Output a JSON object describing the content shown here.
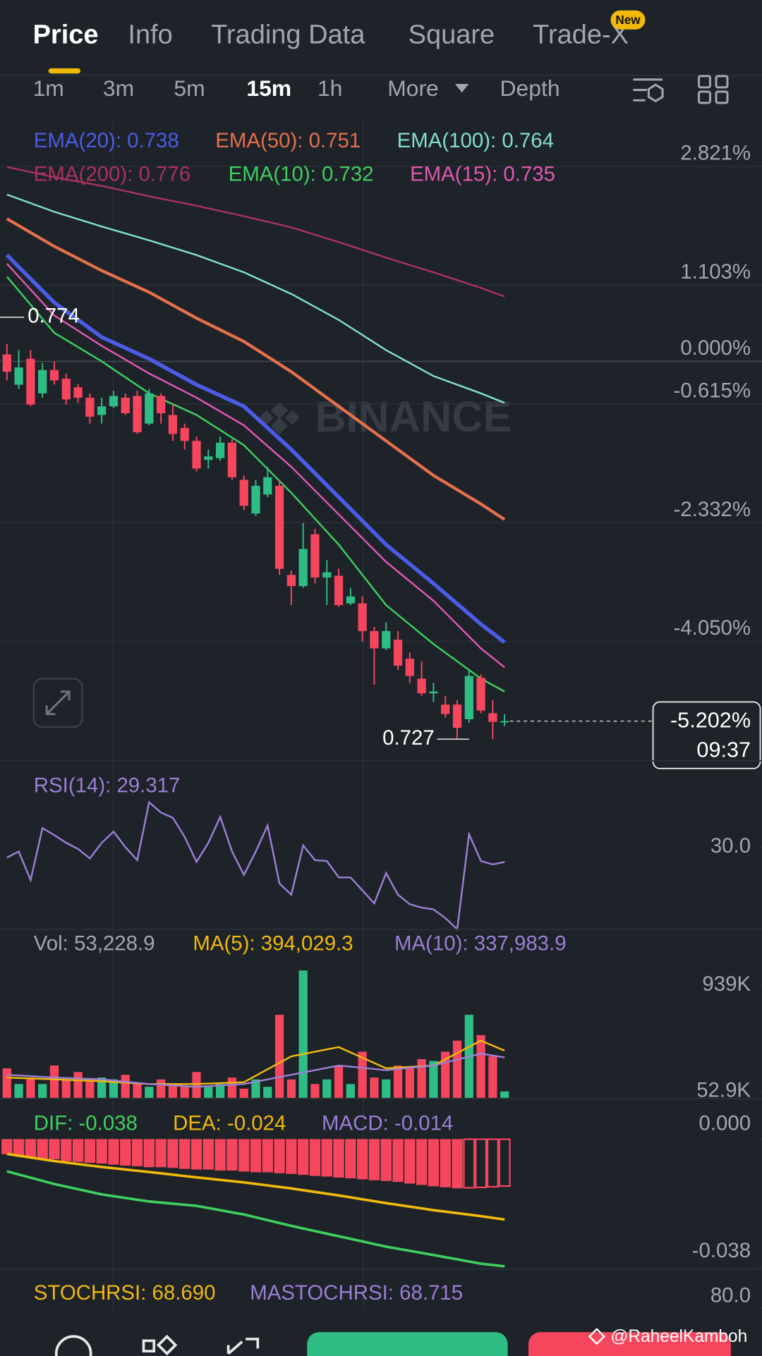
{
  "tabs": [
    "Price",
    "Info",
    "Trading Data",
    "Square",
    "Trade-X"
  ],
  "badge": "New",
  "timeframes": [
    "1m",
    "3m",
    "5m",
    "15m",
    "1h",
    "More",
    "Depth"
  ],
  "watermark": "BINANCE",
  "credit": "@RaheelKamboh",
  "chart_data": [
    {
      "type": "candlestick",
      "up_color": "#2ebd85",
      "down_color": "#f6465d",
      "grid": true,
      "ylim": [
        -5.775,
        3.475
      ],
      "yticks": [
        {
          "value": 2.821,
          "label": "2.821%"
        },
        {
          "value": 1.103,
          "label": "1.103%"
        },
        {
          "value": 0,
          "label": "0.000%"
        },
        {
          "value": -0.615,
          "label": "-0.615%"
        },
        {
          "value": -2.332,
          "label": "-2.332%"
        },
        {
          "value": -4.05,
          "label": "-4.050%"
        }
      ],
      "ohlc": [
        [
          0.1,
          0.25,
          -0.275,
          -0.15
        ],
        [
          -0.338,
          0.163,
          -0.4,
          -0.088
        ],
        [
          0.038,
          0.163,
          -0.65,
          -0.625
        ],
        [
          -0.463,
          -0.025,
          -0.525,
          -0.125
        ],
        [
          -0.125,
          0,
          -0.338,
          -0.275
        ],
        [
          -0.25,
          -0.175,
          -0.625,
          -0.55
        ],
        [
          -0.375,
          -0.325,
          -0.6,
          -0.525
        ],
        [
          -0.525,
          -0.463,
          -0.9,
          -0.8
        ],
        [
          -0.775,
          -0.525,
          -0.9,
          -0.65
        ],
        [
          -0.65,
          -0.425,
          -0.675,
          -0.5
        ],
        [
          -0.525,
          -0.463,
          -0.775,
          -0.75
        ],
        [
          -0.5,
          -0.425,
          -1.05,
          -1.025
        ],
        [
          -0.9,
          -0.4,
          -0.925,
          -0.463
        ],
        [
          -0.5,
          -0.463,
          -0.9,
          -0.75
        ],
        [
          -0.775,
          -0.625,
          -1.15,
          -1.05
        ],
        [
          -0.963,
          -0.9,
          -1.275,
          -1.15
        ],
        [
          -1.15,
          -1.088,
          -1.588,
          -1.55
        ],
        [
          -1.425,
          -1.275,
          -1.55,
          -1.375
        ],
        [
          -1.4,
          -1.088,
          -1.438,
          -1.175
        ],
        [
          -1.175,
          -1.125,
          -1.713,
          -1.675
        ],
        [
          -1.713,
          -1.65,
          -2.15,
          -2.088
        ],
        [
          -2.2,
          -1.713,
          -2.238,
          -1.8
        ],
        [
          -1.925,
          -1.525,
          -1.963,
          -1.675
        ],
        [
          -1.8,
          -1.713,
          -3.088,
          -3
        ],
        [
          -3.088,
          -3.025,
          -3.525,
          -3.25
        ],
        [
          -3.25,
          -2.338,
          -3.275,
          -2.713
        ],
        [
          -2.5,
          -2.425,
          -3.213,
          -3.125
        ],
        [
          -3.125,
          -2.875,
          -3.525,
          -3.05
        ],
        [
          -3.1,
          -3,
          -3.55,
          -3.525
        ],
        [
          -3.5,
          -3.275,
          -3.525,
          -3.4
        ],
        [
          -3.5,
          -3.4,
          -4.05,
          -3.9
        ],
        [
          -3.9,
          -3.838,
          -4.675,
          -4.15
        ],
        [
          -4.15,
          -3.775,
          -4.175,
          -3.9
        ],
        [
          -4.025,
          -3.9,
          -4.463,
          -4.4
        ],
        [
          -4.3,
          -4.213,
          -4.65,
          -4.55
        ],
        [
          -4.588,
          -4.338,
          -4.838,
          -4.8
        ],
        [
          -4.8,
          -4.65,
          -4.925,
          -4.775
        ],
        [
          -4.963,
          -4.838,
          -5.15,
          -5.1
        ],
        [
          -4.963,
          -4.9,
          -5.463,
          -5.3
        ],
        [
          -5.175,
          -4.463,
          -5.225,
          -4.55
        ],
        [
          -4.575,
          -4.525,
          -5.088,
          -5.05
        ],
        [
          -5.088,
          -4.9,
          -5.463,
          -5.213
        ],
        [
          -5.213,
          -5.1,
          -5.275,
          -5.202
        ]
      ],
      "line_x": [
        0,
        4,
        8,
        12,
        16,
        20,
        24,
        28,
        32,
        36,
        40,
        42
      ],
      "series": [
        {
          "label": "EMA(20): 0.738",
          "color": "#4a5ce6",
          "values": [
            1.538,
            0.85,
            0.35,
            0.037,
            -0.338,
            -0.65,
            -1.275,
            -1.963,
            -2.65,
            -3.213,
            -3.8,
            -4.063
          ]
        },
        {
          "label": "EMA(50): 0.751",
          "color": "#e5704b",
          "values": [
            2.063,
            1.663,
            1.313,
            1.0,
            0.625,
            0.288,
            -0.15,
            -0.65,
            -1.15,
            -1.65,
            -2.063,
            -2.288
          ]
        },
        {
          "label": "EMA(100): 0.764",
          "color": "#7fe0c9",
          "values": [
            2.413,
            2.163,
            1.95,
            1.75,
            1.538,
            1.288,
            0.975,
            0.6,
            0.162,
            -0.213,
            -0.463,
            -0.6
          ]
        },
        {
          "label": "EMA(200): 0.776",
          "color": "#a8325f",
          "values": [
            2.813,
            2.663,
            2.538,
            2.388,
            2.25,
            2.1,
            1.938,
            1.725,
            1.5,
            1.288,
            1.063,
            0.938
          ]
        },
        {
          "label": "EMA(10): 0.732",
          "color": "#3ecf5e",
          "values": [
            1.225,
            0.413,
            0.0,
            -0.463,
            -0.775,
            -1.213,
            -1.9,
            -2.65,
            -3.525,
            -4.088,
            -4.588,
            -4.775
          ]
        },
        {
          "label": "EMA(15): 0.735",
          "color": "#e058b0",
          "values": [
            1.413,
            0.663,
            0.225,
            -0.175,
            -0.525,
            -0.925,
            -1.525,
            -2.213,
            -2.9,
            -3.463,
            -4.15,
            -4.425
          ]
        }
      ],
      "markers": [
        {
          "label": "0.774",
          "value": 0.638
        },
        {
          "label": "0.727",
          "value": -5.463
        }
      ],
      "price_label": "-5.202%",
      "countdown": "09:37"
    },
    {
      "type": "line",
      "title": "RSI(14): 29.317",
      "color": "#9b7fd4",
      "ylim": [
        26.2,
        33.4
      ],
      "yticks": [
        {
          "value": 30,
          "label": "30.0"
        }
      ],
      "values": [
        29.52,
        29.8,
        28.48,
        30.88,
        30.56,
        30.2,
        29.92,
        29.48,
        30.2,
        30.72,
        30,
        29.4,
        32.08,
        31.6,
        31.36,
        30.48,
        29.32,
        30.2,
        31.4,
        29.8,
        28.72,
        29.8,
        31,
        28.32,
        27.8,
        30.08,
        29.4,
        29.36,
        28.6,
        28.6,
        28,
        27.4,
        28.8,
        27.8,
        27.36,
        27.2,
        27.12,
        26.72,
        26.2,
        30.6,
        29.36,
        29.2,
        29.317
      ]
    },
    {
      "type": "bar",
      "title": "Vol: 53,228.9",
      "ylim": [
        0,
        1154700
      ],
      "yticks": [
        {
          "value": 939000,
          "label": "939K"
        },
        {
          "value": 52900,
          "label": "52.9K"
        }
      ],
      "values": [
        246560,
        115575,
        169510,
        115575,
        269675,
        154100,
        215740,
        154100,
        169510,
        154100,
        192625,
        115575,
        92460,
        154100,
        115575,
        92460,
        215740,
        92460,
        115575,
        169510,
        77050,
        154100,
        92460,
        693450,
        154100,
        1063290,
        115575,
        154100,
        269675,
        115575,
        385250,
        169510,
        154100,
        269675,
        246560,
        323610,
        308200,
        385250,
        477710,
        693450,
        523940,
        346725,
        53228.9
      ],
      "series": [
        {
          "label": "MA(5): 394,029.3",
          "color": "#f0b90b",
          "values": [
            169510,
            154100,
            138690,
            115575,
            115575,
            130985,
            346725,
            423775,
            246560,
            269675,
            477710,
            394029.3
          ]
        },
        {
          "label": "MA(10): 337,983.9",
          "color": "#9b7fd4",
          "values": [
            192625,
            169510,
            154100,
            115575,
            92460,
            115575,
            192625,
            269675,
            231150,
            269675,
            369840,
            337983.9
          ]
        }
      ]
    },
    {
      "type": "macd",
      "ylim": [
        -0.0388,
        0.0098
      ],
      "yticks": [
        {
          "value": 0,
          "label": "0.000"
        },
        {
          "value": -0.038,
          "label": "-0.038"
        }
      ],
      "histogram": {
        "label": "MACD: -0.014",
        "color": "#9b7fd4",
        "bar_color": "#f6465d",
        "values": [
          -0.0044,
          -0.0049,
          -0.0052,
          -0.0057,
          -0.0059,
          -0.0065,
          -0.0067,
          -0.007,
          -0.0072,
          -0.0075,
          -0.0078,
          -0.008,
          -0.0083,
          -0.0083,
          -0.0085,
          -0.0088,
          -0.009,
          -0.009,
          -0.0093,
          -0.0093,
          -0.0096,
          -0.0098,
          -0.0098,
          -0.0101,
          -0.0103,
          -0.0106,
          -0.0109,
          -0.0111,
          -0.0114,
          -0.0116,
          -0.0119,
          -0.0122,
          -0.0124,
          -0.0127,
          -0.0132,
          -0.0136,
          -0.014,
          -0.0143,
          -0.0146,
          -0.0145,
          -0.0144,
          -0.0142,
          -0.014
        ]
      },
      "series": [
        {
          "label": "DIF: -0.038",
          "color": "#3ecf5e",
          "values": [
            -0.0096,
            -0.0134,
            -0.0165,
            -0.0186,
            -0.0199,
            -0.0225,
            -0.0259,
            -0.029,
            -0.0321,
            -0.0346,
            -0.0372,
            -0.038
          ]
        },
        {
          "label": "DEA: -0.024",
          "color": "#f0b90b",
          "values": [
            -0.0044,
            -0.0065,
            -0.0083,
            -0.0098,
            -0.0114,
            -0.0129,
            -0.0147,
            -0.0168,
            -0.0191,
            -0.0212,
            -0.023,
            -0.024
          ]
        }
      ]
    },
    {
      "type": "stochrsi",
      "ylim": [
        79.5,
        81.5
      ],
      "yticks": [
        {
          "value": 80,
          "label": "80.0"
        }
      ],
      "labels": [
        {
          "text": "STOCHRSI: 68.690",
          "color": "#f0b90b"
        },
        {
          "text": "MASTOCHRSI: 68.715",
          "color": "#9b7fd4"
        }
      ]
    }
  ]
}
